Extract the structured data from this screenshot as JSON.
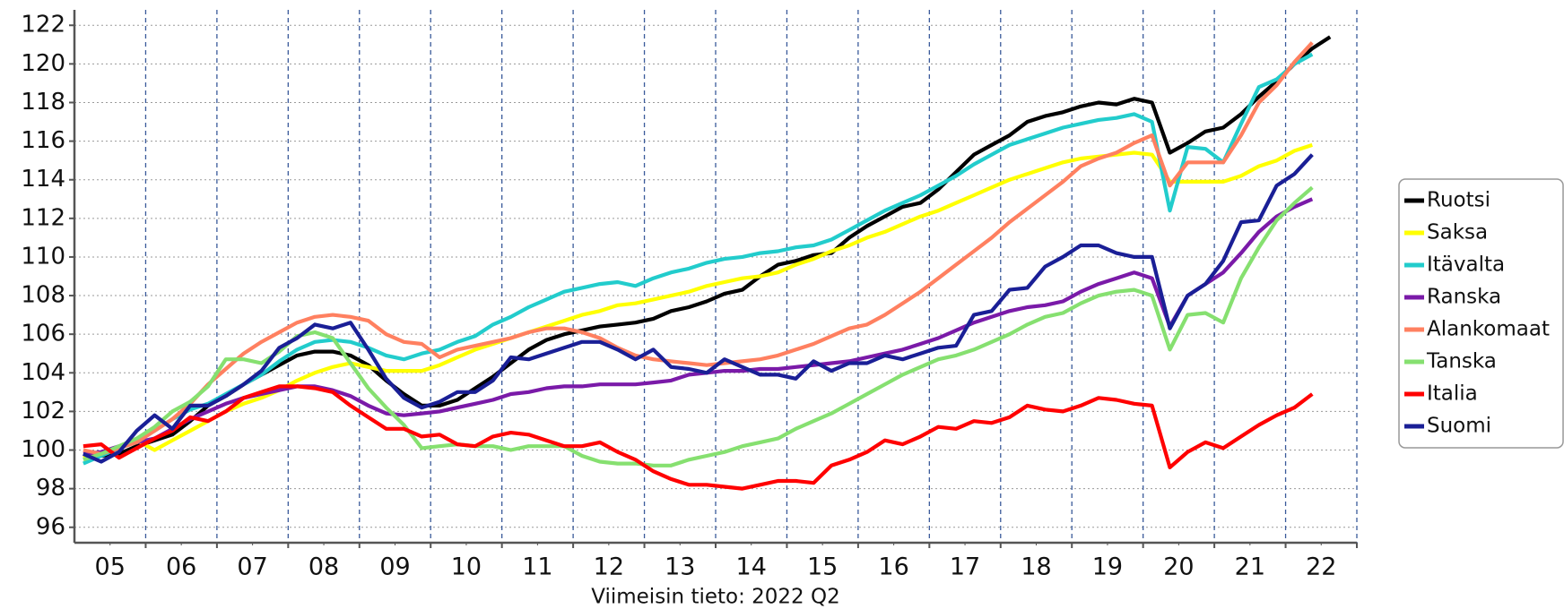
{
  "chart_data": {
    "type": "line",
    "subtitle": "Viimeisin tieto: 2022 Q2",
    "x": [
      2005.125,
      2005.375,
      2005.625,
      2005.875,
      2006.125,
      2006.375,
      2006.625,
      2006.875,
      2007.125,
      2007.375,
      2007.625,
      2007.875,
      2008.125,
      2008.375,
      2008.625,
      2008.875,
      2009.125,
      2009.375,
      2009.625,
      2009.875,
      2010.125,
      2010.375,
      2010.625,
      2010.875,
      2011.125,
      2011.375,
      2011.625,
      2011.875,
      2012.125,
      2012.375,
      2012.625,
      2012.875,
      2013.125,
      2013.375,
      2013.625,
      2013.875,
      2014.125,
      2014.375,
      2014.625,
      2014.875,
      2015.125,
      2015.375,
      2015.625,
      2015.875,
      2016.125,
      2016.375,
      2016.625,
      2016.875,
      2017.125,
      2017.375,
      2017.625,
      2017.875,
      2018.125,
      2018.375,
      2018.625,
      2018.875,
      2019.125,
      2019.375,
      2019.625,
      2019.875,
      2020.125,
      2020.375,
      2020.625,
      2020.875,
      2021.125,
      2021.375,
      2021.625,
      2021.875,
      2022.125,
      2022.375,
      2022.625
    ],
    "xlim": [
      2005,
      2023
    ],
    "xticks": [
      {
        "value": 2005.5,
        "label": "05"
      },
      {
        "value": 2006.5,
        "label": "06"
      },
      {
        "value": 2007.5,
        "label": "07"
      },
      {
        "value": 2008.5,
        "label": "08"
      },
      {
        "value": 2009.5,
        "label": "09"
      },
      {
        "value": 2010.5,
        "label": "10"
      },
      {
        "value": 2011.5,
        "label": "11"
      },
      {
        "value": 2012.5,
        "label": "12"
      },
      {
        "value": 2013.5,
        "label": "13"
      },
      {
        "value": 2014.5,
        "label": "14"
      },
      {
        "value": 2015.5,
        "label": "15"
      },
      {
        "value": 2016.5,
        "label": "16"
      },
      {
        "value": 2017.5,
        "label": "17"
      },
      {
        "value": 2018.5,
        "label": "18"
      },
      {
        "value": 2019.5,
        "label": "19"
      },
      {
        "value": 2020.5,
        "label": "20"
      },
      {
        "value": 2021.5,
        "label": "21"
      },
      {
        "value": 2022.5,
        "label": "22"
      }
    ],
    "xgrid": [
      2006,
      2007,
      2008,
      2009,
      2010,
      2011,
      2012,
      2013,
      2014,
      2015,
      2016,
      2017,
      2018,
      2019,
      2020,
      2021,
      2022,
      2023
    ],
    "ylim": [
      95.2,
      122.8
    ],
    "yticks": [
      96,
      98,
      100,
      102,
      104,
      106,
      108,
      110,
      112,
      114,
      116,
      118,
      120,
      122
    ],
    "grid": true,
    "legend": "right",
    "series": [
      {
        "name": "Ruotsi",
        "color": "#000000",
        "values": [
          99.7,
          99.7,
          99.8,
          100.2,
          100.5,
          100.8,
          101.5,
          102.3,
          102.8,
          103.4,
          103.9,
          104.4,
          104.9,
          105.1,
          105.1,
          104.9,
          104.4,
          103.6,
          102.9,
          102.3,
          102.3,
          102.6,
          103.2,
          103.8,
          104.5,
          105.2,
          105.7,
          106.0,
          106.2,
          106.4,
          106.5,
          106.6,
          106.8,
          107.2,
          107.4,
          107.7,
          108.1,
          108.3,
          109.0,
          109.6,
          109.8,
          110.1,
          110.2,
          111.0,
          111.6,
          112.1,
          112.6,
          112.8,
          113.5,
          114.4,
          115.3,
          115.8,
          116.3,
          117.0,
          117.3,
          117.5,
          117.8,
          118.0,
          117.9,
          118.2,
          118.0,
          115.4,
          115.9,
          116.5,
          116.7,
          117.4,
          118.3,
          119.1,
          120.0,
          120.8,
          121.4
        ]
      },
      {
        "name": "Saksa",
        "color": "#ffff00",
        "values": [
          99.6,
          99.8,
          100.1,
          100.5,
          100.0,
          100.5,
          101.0,
          101.5,
          102.0,
          102.4,
          102.7,
          103.1,
          103.6,
          104.0,
          104.3,
          104.5,
          104.3,
          104.1,
          104.1,
          104.1,
          104.4,
          104.8,
          105.2,
          105.5,
          105.8,
          106.1,
          106.4,
          106.7,
          107.0,
          107.2,
          107.5,
          107.6,
          107.8,
          108.0,
          108.2,
          108.5,
          108.7,
          108.9,
          109.0,
          109.2,
          109.6,
          109.9,
          110.3,
          110.6,
          111.0,
          111.3,
          111.7,
          112.1,
          112.4,
          112.8,
          113.2,
          113.6,
          114.0,
          114.3,
          114.6,
          114.9,
          115.1,
          115.2,
          115.3,
          115.4,
          115.3,
          113.9,
          113.9,
          113.9,
          113.9,
          114.2,
          114.7,
          115.0,
          115.5,
          115.8,
          null
        ]
      },
      {
        "name": "Itävalta",
        "color": "#22cccc",
        "values": [
          99.3,
          99.7,
          100.1,
          100.5,
          101.0,
          101.6,
          102.1,
          102.4,
          102.9,
          103.4,
          103.9,
          104.6,
          105.2,
          105.6,
          105.7,
          105.6,
          105.3,
          104.9,
          104.7,
          105.0,
          105.2,
          105.6,
          105.9,
          106.5,
          106.9,
          107.4,
          107.8,
          108.2,
          108.4,
          108.6,
          108.7,
          108.5,
          108.9,
          109.2,
          109.4,
          109.7,
          109.9,
          110.0,
          110.2,
          110.3,
          110.5,
          110.6,
          110.9,
          111.4,
          111.9,
          112.4,
          112.8,
          113.2,
          113.7,
          114.2,
          114.8,
          115.3,
          115.8,
          116.1,
          116.4,
          116.7,
          116.9,
          117.1,
          117.2,
          117.4,
          117.0,
          112.4,
          115.7,
          115.6,
          114.9,
          116.9,
          118.8,
          119.2,
          120.0,
          120.5,
          null
        ]
      },
      {
        "name": "Ranska",
        "color": "#7a1aa8",
        "values": [
          99.8,
          99.9,
          100.2,
          100.4,
          100.6,
          101.1,
          101.6,
          102.0,
          102.4,
          102.7,
          102.9,
          103.1,
          103.3,
          103.3,
          103.1,
          102.8,
          102.3,
          101.9,
          101.8,
          101.9,
          102.0,
          102.2,
          102.4,
          102.6,
          102.9,
          103.0,
          103.2,
          103.3,
          103.3,
          103.4,
          103.4,
          103.4,
          103.5,
          103.6,
          103.9,
          104.0,
          104.1,
          104.1,
          104.2,
          104.2,
          104.3,
          104.4,
          104.5,
          104.6,
          104.8,
          105.0,
          105.2,
          105.5,
          105.8,
          106.2,
          106.6,
          106.9,
          107.2,
          107.4,
          107.5,
          107.7,
          108.2,
          108.6,
          108.9,
          109.2,
          108.9,
          106.4,
          108.0,
          108.6,
          109.2,
          110.2,
          111.3,
          112.1,
          112.6,
          113.0,
          null
        ]
      },
      {
        "name": "Alankomaat",
        "color": "#ff8060",
        "values": [
          100.0,
          99.8,
          100.1,
          100.4,
          101.0,
          101.6,
          102.4,
          103.4,
          104.2,
          105.0,
          105.6,
          106.1,
          106.6,
          106.9,
          107.0,
          106.9,
          106.7,
          106.0,
          105.6,
          105.5,
          104.8,
          105.2,
          105.4,
          105.6,
          105.8,
          106.1,
          106.3,
          106.3,
          106.1,
          105.8,
          105.3,
          104.9,
          104.7,
          104.6,
          104.5,
          104.4,
          104.5,
          104.6,
          104.7,
          104.9,
          105.2,
          105.5,
          105.9,
          106.3,
          106.5,
          107.0,
          107.6,
          108.2,
          108.9,
          109.6,
          110.3,
          111.0,
          111.8,
          112.5,
          113.2,
          113.9,
          114.7,
          115.1,
          115.4,
          115.9,
          116.3,
          113.7,
          114.9,
          114.9,
          114.9,
          116.3,
          118.0,
          118.9,
          120.1,
          121.1,
          null
        ]
      },
      {
        "name": "Tanska",
        "color": "#86e070",
        "values": [
          99.5,
          99.8,
          100.2,
          100.6,
          101.2,
          102.0,
          102.5,
          103.3,
          104.7,
          104.7,
          104.5,
          105.1,
          105.9,
          106.1,
          105.8,
          104.5,
          103.2,
          102.2,
          101.3,
          100.1,
          100.2,
          100.3,
          100.2,
          100.2,
          100.0,
          100.2,
          100.2,
          100.2,
          99.7,
          99.4,
          99.3,
          99.3,
          99.2,
          99.2,
          99.5,
          99.7,
          99.9,
          100.2,
          100.4,
          100.6,
          101.1,
          101.5,
          101.9,
          102.4,
          102.9,
          103.4,
          103.9,
          104.3,
          104.7,
          104.9,
          105.2,
          105.6,
          106.0,
          106.5,
          106.9,
          107.1,
          107.6,
          108.0,
          108.2,
          108.3,
          108.0,
          105.2,
          107.0,
          107.1,
          106.6,
          108.9,
          110.5,
          111.9,
          112.8,
          113.6,
          null
        ]
      },
      {
        "name": "Italia",
        "color": "#ff0000",
        "values": [
          100.2,
          100.3,
          99.6,
          100.1,
          100.6,
          101.0,
          101.7,
          101.5,
          102.0,
          102.7,
          103.0,
          103.3,
          103.3,
          103.2,
          103.0,
          102.3,
          101.7,
          101.1,
          101.1,
          100.7,
          100.8,
          100.3,
          100.2,
          100.7,
          100.9,
          100.8,
          100.5,
          100.2,
          100.2,
          100.4,
          99.9,
          99.5,
          98.9,
          98.5,
          98.2,
          98.2,
          98.1,
          98.0,
          98.2,
          98.4,
          98.4,
          98.3,
          99.2,
          99.5,
          99.9,
          100.5,
          100.3,
          100.7,
          101.2,
          101.1,
          101.5,
          101.4,
          101.7,
          102.3,
          102.1,
          102.0,
          102.3,
          102.7,
          102.6,
          102.4,
          102.3,
          99.1,
          99.9,
          100.4,
          100.1,
          100.7,
          101.3,
          101.8,
          102.2,
          102.9,
          null
        ]
      },
      {
        "name": "Suomi",
        "color": "#1a1f96",
        "values": [
          99.8,
          99.4,
          99.9,
          101.0,
          101.8,
          101.1,
          102.3,
          102.3,
          102.8,
          103.4,
          104.1,
          105.3,
          105.8,
          106.5,
          106.3,
          106.6,
          105.2,
          103.7,
          102.7,
          102.2,
          102.5,
          103.0,
          103.0,
          103.6,
          104.8,
          104.7,
          105.0,
          105.3,
          105.6,
          105.6,
          105.2,
          104.7,
          105.2,
          104.3,
          104.2,
          104.0,
          104.7,
          104.3,
          103.9,
          103.9,
          103.7,
          104.6,
          104.1,
          104.5,
          104.5,
          104.9,
          104.7,
          105.0,
          105.3,
          105.4,
          107.0,
          107.2,
          108.3,
          108.4,
          109.5,
          110.0,
          110.6,
          110.6,
          110.2,
          110.0,
          110.0,
          106.3,
          108.0,
          108.6,
          109.8,
          111.8,
          111.9,
          113.7,
          114.3,
          115.3,
          null
        ]
      }
    ]
  }
}
